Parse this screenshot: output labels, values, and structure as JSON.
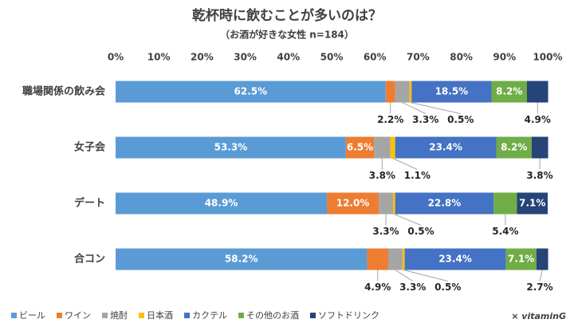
{
  "chart_data": {
    "type": "stacked-bar-100",
    "title": "乾杯時に飲むことが多いのは？",
    "subtitle": "（お酒が好きな女性 n=184）",
    "brand": "× vitaminG",
    "categories": [
      "職場関係の飲み会",
      "女子会",
      "デート",
      "合コン"
    ],
    "series": [
      {
        "name": "ビール",
        "color": "#5b9bd5",
        "values": [
          62.5,
          53.3,
          48.9,
          58.2
        ],
        "value_labels": [
          "62.5%",
          "53.3%",
          "48.9%",
          "58.2%"
        ]
      },
      {
        "name": "ワイン",
        "color": "#ed7d31",
        "values": [
          2.2,
          6.5,
          12.0,
          4.9
        ],
        "value_labels": [
          "2.2%",
          "6.5%",
          "12.0%",
          "4.9%"
        ]
      },
      {
        "name": "焼酎",
        "color": "#a5a5a5",
        "values": [
          3.3,
          3.8,
          3.3,
          3.3
        ],
        "value_labels": [
          "3.3%",
          "3.8%",
          "3.3%",
          "3.3%"
        ]
      },
      {
        "name": "日本酒",
        "color": "#ffc000",
        "values": [
          0.5,
          1.1,
          0.5,
          0.5
        ],
        "value_labels": [
          "0.5%",
          "1.1%",
          "0.5%",
          "0.5%"
        ]
      },
      {
        "name": "カクテル",
        "color": "#4472c4",
        "values": [
          18.5,
          23.4,
          22.8,
          23.4
        ],
        "value_labels": [
          "18.5%",
          "23.4%",
          "22.8%",
          "23.4%"
        ]
      },
      {
        "name": "その他のお酒",
        "color": "#70ad47",
        "values": [
          8.2,
          8.2,
          5.4,
          7.1
        ],
        "value_labels": [
          "8.2%",
          "8.2%",
          "5.4%",
          "7.1%"
        ]
      },
      {
        "name": "ソフトドリンク",
        "color": "#264478",
        "values": [
          4.9,
          3.8,
          7.1,
          2.7
        ],
        "value_labels": [
          "4.9%",
          "3.8%",
          "7.1%",
          "2.7%"
        ]
      }
    ],
    "xlim": [
      0,
      100
    ],
    "xticks": [
      {
        "value": 0,
        "label": "0%"
      },
      {
        "value": 10,
        "label": "10%"
      },
      {
        "value": 20,
        "label": "20%"
      },
      {
        "value": 30,
        "label": "30%"
      },
      {
        "value": 40,
        "label": "40%"
      },
      {
        "value": 50,
        "label": "50%"
      },
      {
        "value": 60,
        "label": "60%"
      },
      {
        "value": 70,
        "label": "70%"
      },
      {
        "value": 80,
        "label": "80%"
      },
      {
        "value": 90,
        "label": "90%"
      },
      {
        "value": 100,
        "label": "100%"
      }
    ],
    "grid": false
  }
}
